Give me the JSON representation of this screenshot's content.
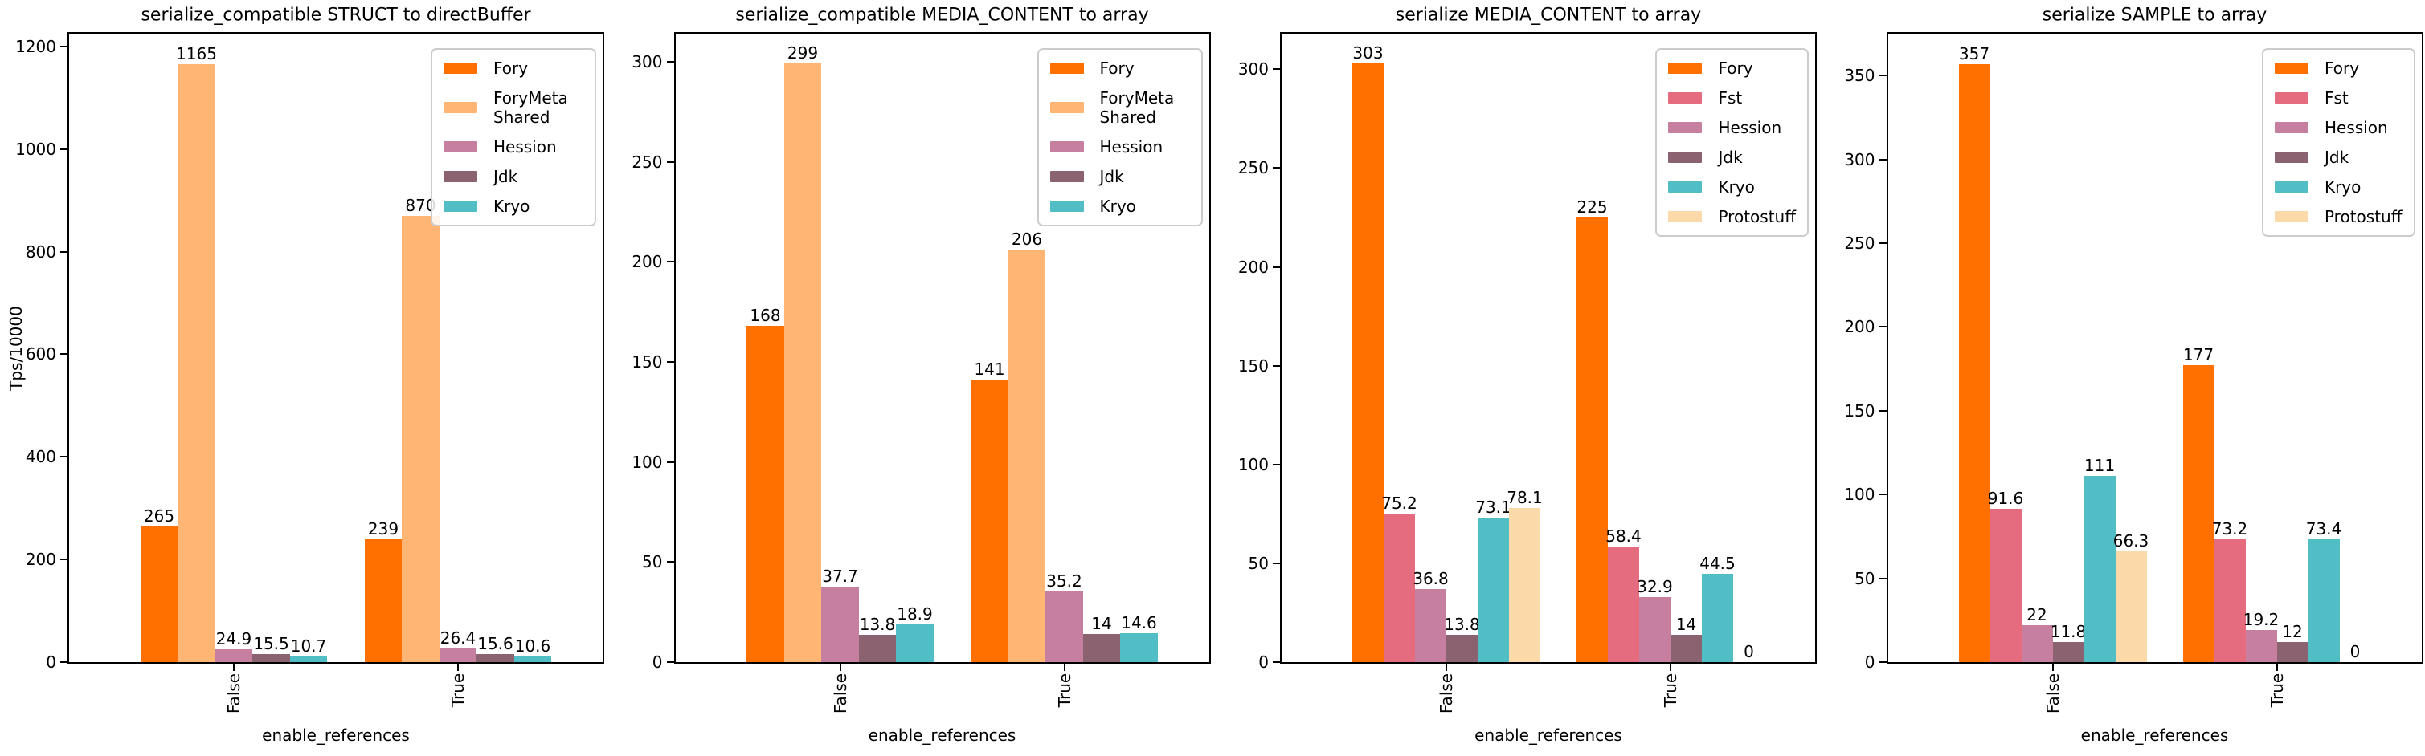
{
  "figure": {
    "background": "#FFFFFF",
    "ylabel": "Tps/10000",
    "xlabel": "enable_references",
    "categories": [
      "False",
      "True"
    ]
  },
  "chart_data": [
    {
      "type": "bar",
      "title": "serialize_compatible STRUCT to directBuffer",
      "xlabel": "enable_references",
      "ylabel": "Tps/10000",
      "categories": [
        "False",
        "True"
      ],
      "yticks": [
        0,
        200,
        400,
        600,
        800,
        1000,
        1200
      ],
      "ylim": [
        0,
        1225
      ],
      "grid": false,
      "legend_position": "upper right",
      "series": [
        {
          "name": "Fory",
          "color": "#FF7000",
          "values": [
            265,
            239
          ]
        },
        {
          "name": "ForyMeta Shared",
          "color": "#FFB674",
          "values": [
            1165,
            870
          ]
        },
        {
          "name": "Hession",
          "color": "#C77F9F",
          "values": [
            24.9,
            26.4
          ]
        },
        {
          "name": "Jdk",
          "color": "#8B6370",
          "values": [
            15.5,
            15.6
          ]
        },
        {
          "name": "Kryo",
          "color": "#50BEC4",
          "values": [
            10.7,
            10.6
          ]
        }
      ]
    },
    {
      "type": "bar",
      "title": "serialize_compatible MEDIA_CONTENT to array",
      "xlabel": "enable_references",
      "ylabel": "",
      "categories": [
        "False",
        "True"
      ],
      "yticks": [
        0,
        50,
        100,
        150,
        200,
        250,
        300
      ],
      "ylim": [
        0,
        314
      ],
      "grid": false,
      "legend_position": "upper right",
      "series": [
        {
          "name": "Fory",
          "color": "#FF7000",
          "values": [
            168,
            141
          ]
        },
        {
          "name": "ForyMeta Shared",
          "color": "#FFB674",
          "values": [
            299,
            206
          ]
        },
        {
          "name": "Hession",
          "color": "#C77F9F",
          "values": [
            37.7,
            35.2
          ]
        },
        {
          "name": "Jdk",
          "color": "#8B6370",
          "values": [
            13.8,
            14
          ]
        },
        {
          "name": "Kryo",
          "color": "#50BEC4",
          "values": [
            18.9,
            14.6
          ]
        }
      ]
    },
    {
      "type": "bar",
      "title": "serialize MEDIA_CONTENT to array",
      "xlabel": "enable_references",
      "ylabel": "",
      "categories": [
        "False",
        "True"
      ],
      "yticks": [
        0,
        50,
        100,
        150,
        200,
        250,
        300
      ],
      "ylim": [
        0,
        318
      ],
      "grid": false,
      "legend_position": "upper right",
      "series": [
        {
          "name": "Fory",
          "color": "#FF7000",
          "values": [
            303,
            225
          ]
        },
        {
          "name": "Fst",
          "color": "#E56B7E",
          "values": [
            75.2,
            58.4
          ]
        },
        {
          "name": "Hession",
          "color": "#C77F9F",
          "values": [
            36.8,
            32.9
          ]
        },
        {
          "name": "Jdk",
          "color": "#8B6370",
          "values": [
            13.8,
            14
          ]
        },
        {
          "name": "Kryo",
          "color": "#50BEC4",
          "values": [
            73.1,
            44.5
          ]
        },
        {
          "name": "Protostuff",
          "color": "#FCD9A8",
          "values": [
            78.1,
            0
          ]
        }
      ]
    },
    {
      "type": "bar",
      "title": "serialize SAMPLE to array",
      "xlabel": "enable_references",
      "ylabel": "",
      "categories": [
        "False",
        "True"
      ],
      "yticks": [
        0,
        50,
        100,
        150,
        200,
        250,
        300,
        350
      ],
      "ylim": [
        0,
        375
      ],
      "grid": false,
      "legend_position": "upper right",
      "series": [
        {
          "name": "Fory",
          "color": "#FF7000",
          "values": [
            357,
            177
          ]
        },
        {
          "name": "Fst",
          "color": "#E56B7E",
          "values": [
            91.6,
            73.2
          ]
        },
        {
          "name": "Hession",
          "color": "#C77F9F",
          "values": [
            22,
            19.2
          ]
        },
        {
          "name": "Jdk",
          "color": "#8B6370",
          "values": [
            11.8,
            12
          ]
        },
        {
          "name": "Kryo",
          "color": "#50BEC4",
          "values": [
            111,
            73.4
          ]
        },
        {
          "name": "Protostuff",
          "color": "#FCD9A8",
          "values": [
            66.3,
            0
          ]
        }
      ]
    }
  ]
}
